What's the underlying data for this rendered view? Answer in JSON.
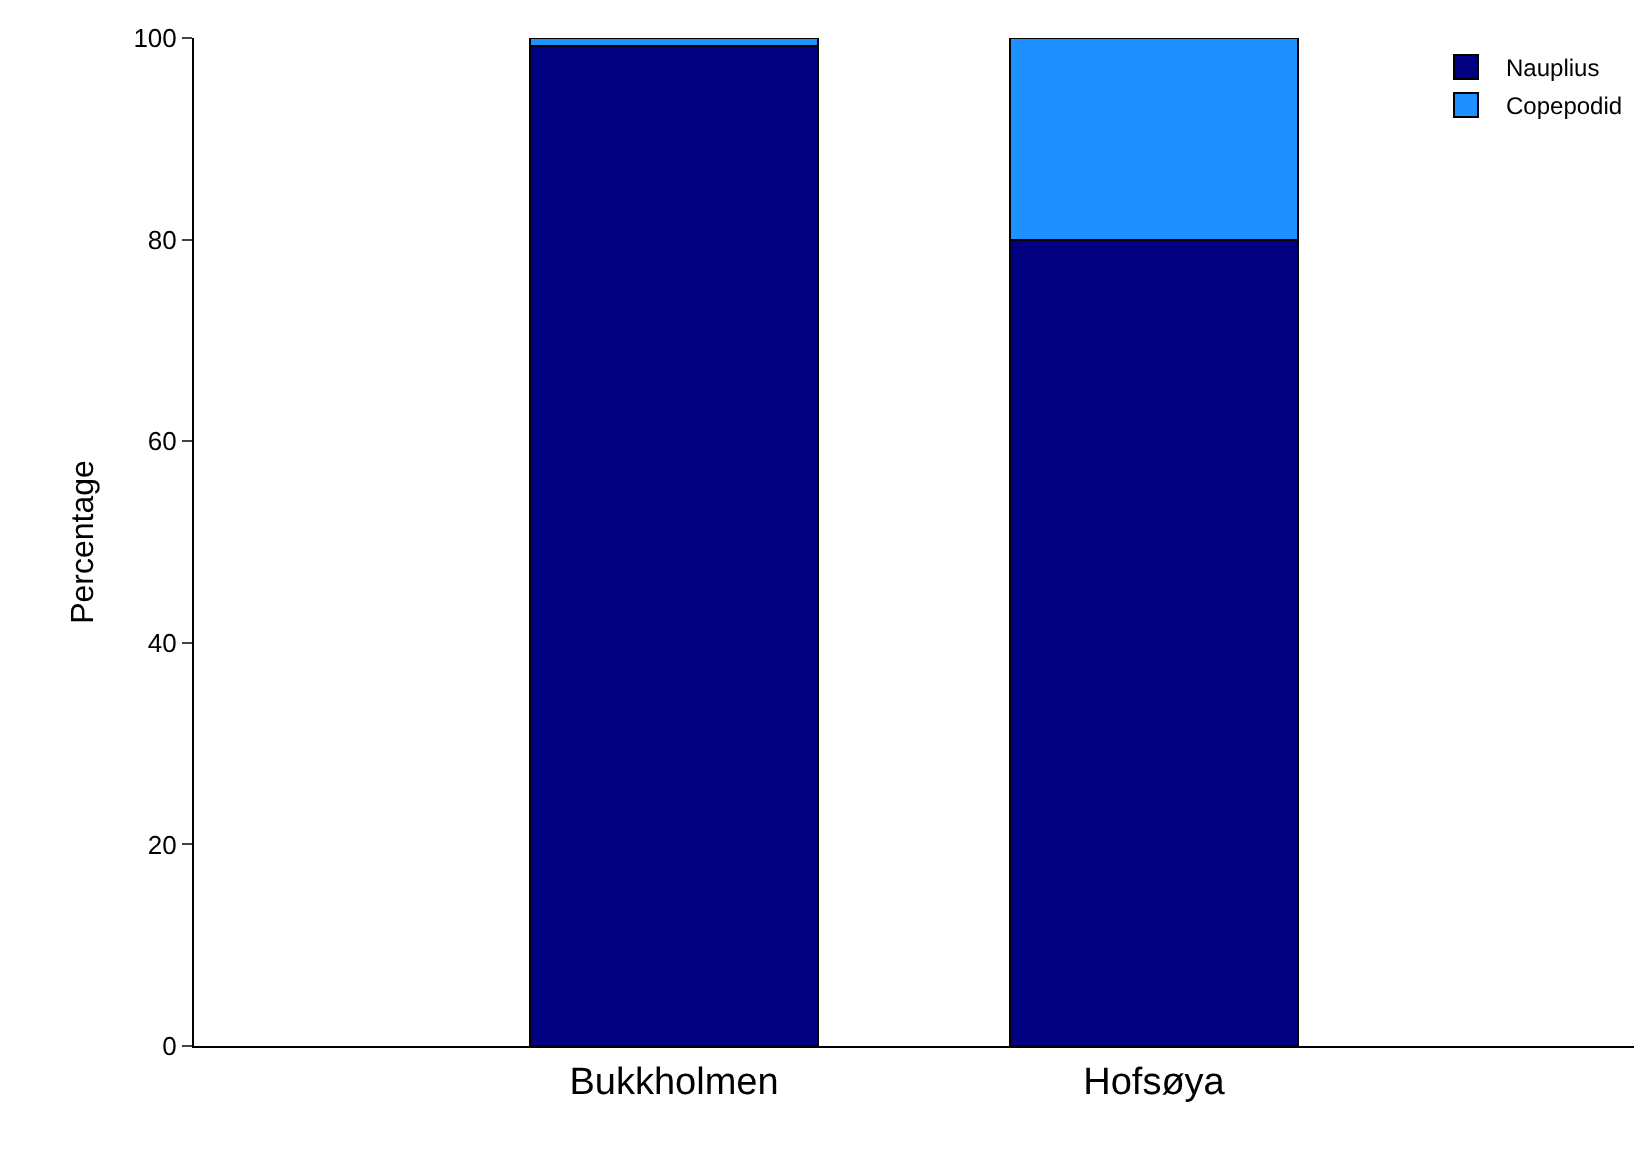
{
  "chart_data": {
    "type": "bar",
    "stacked": true,
    "categories": [
      "Bukkholmen",
      "Hofsøya"
    ],
    "series": [
      {
        "name": "Nauplius",
        "color": "#000080",
        "values": [
          99.2,
          80
        ]
      },
      {
        "name": "Copepodid",
        "color": "#1e90ff",
        "values": [
          0.8,
          20
        ]
      }
    ],
    "ylabel": "Percentage",
    "ylim": [
      0,
      100
    ],
    "yticks": [
      0,
      20,
      40,
      60,
      80,
      100
    ],
    "legend": "top right"
  }
}
